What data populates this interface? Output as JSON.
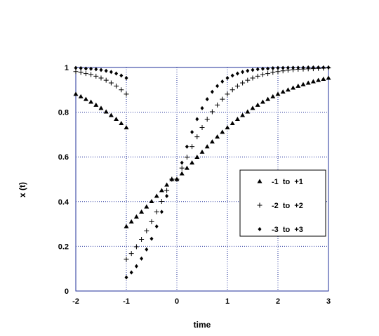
{
  "chart_data": {
    "type": "scatter",
    "title": "",
    "xlabel": "time",
    "ylabel": "x (t)",
    "xlim": [
      -2,
      3
    ],
    "ylim": [
      0,
      1
    ],
    "x_ticks": [
      "-2",
      "-1",
      "0",
      "1",
      "2",
      "3"
    ],
    "y_ticks": [
      "0",
      "0.2",
      "0.4",
      "0.6",
      "0.8",
      "1"
    ],
    "grid": true,
    "grid_color": "#1f2f9a",
    "frame_color": "#1f2f9a",
    "legend_position": "center-right",
    "series": [
      {
        "name": "-1  to  +1",
        "marker": "triangle",
        "points": [
          [
            -2.0,
            0.881
          ],
          [
            -1.9,
            0.87
          ],
          [
            -1.8,
            0.858
          ],
          [
            -1.7,
            0.846
          ],
          [
            -1.6,
            0.832
          ],
          [
            -1.5,
            0.818
          ],
          [
            -1.4,
            0.802
          ],
          [
            -1.3,
            0.786
          ],
          [
            -1.2,
            0.769
          ],
          [
            -1.1,
            0.75
          ],
          [
            -1.0,
            0.731
          ],
          [
            -1.0,
            0.289
          ],
          [
            -0.9,
            0.31
          ],
          [
            -0.8,
            0.332
          ],
          [
            -0.7,
            0.354
          ],
          [
            -0.6,
            0.377
          ],
          [
            -0.5,
            0.401
          ],
          [
            -0.4,
            0.425
          ],
          [
            -0.3,
            0.45
          ],
          [
            -0.2,
            0.475
          ],
          [
            -0.1,
            0.5
          ],
          [
            0.0,
            0.5
          ],
          [
            0.1,
            0.525
          ],
          [
            0.2,
            0.55
          ],
          [
            0.3,
            0.574
          ],
          [
            0.4,
            0.599
          ],
          [
            0.5,
            0.622
          ],
          [
            0.6,
            0.646
          ],
          [
            0.7,
            0.668
          ],
          [
            0.8,
            0.69
          ],
          [
            0.9,
            0.711
          ],
          [
            1.0,
            0.731
          ],
          [
            1.1,
            0.75
          ],
          [
            1.2,
            0.769
          ],
          [
            1.3,
            0.786
          ],
          [
            1.4,
            0.802
          ],
          [
            1.5,
            0.818
          ],
          [
            1.6,
            0.832
          ],
          [
            1.7,
            0.846
          ],
          [
            1.8,
            0.858
          ],
          [
            1.9,
            0.87
          ],
          [
            2.0,
            0.881
          ],
          [
            2.1,
            0.891
          ],
          [
            2.2,
            0.9
          ],
          [
            2.3,
            0.909
          ],
          [
            2.4,
            0.917
          ],
          [
            2.5,
            0.924
          ],
          [
            2.6,
            0.931
          ],
          [
            2.7,
            0.937
          ],
          [
            2.8,
            0.943
          ],
          [
            2.9,
            0.948
          ],
          [
            3.0,
            0.953
          ]
        ]
      },
      {
        "name": "-2  to  +2",
        "marker": "plus",
        "points": [
          [
            -2.0,
            0.982
          ],
          [
            -1.9,
            0.978
          ],
          [
            -1.8,
            0.973
          ],
          [
            -1.7,
            0.968
          ],
          [
            -1.6,
            0.961
          ],
          [
            -1.5,
            0.953
          ],
          [
            -1.4,
            0.943
          ],
          [
            -1.3,
            0.931
          ],
          [
            -1.2,
            0.917
          ],
          [
            -1.1,
            0.9
          ],
          [
            -1.0,
            0.881
          ],
          [
            -1.0,
            0.142
          ],
          [
            -0.9,
            0.168
          ],
          [
            -0.8,
            0.198
          ],
          [
            -0.7,
            0.231
          ],
          [
            -0.6,
            0.269
          ],
          [
            -0.5,
            0.31
          ],
          [
            -0.4,
            0.354
          ],
          [
            -0.3,
            0.401
          ],
          [
            -0.2,
            0.45
          ],
          [
            -0.1,
            0.5
          ],
          [
            0.0,
            0.5
          ],
          [
            0.1,
            0.55
          ],
          [
            0.2,
            0.599
          ],
          [
            0.3,
            0.646
          ],
          [
            0.4,
            0.69
          ],
          [
            0.5,
            0.731
          ],
          [
            0.6,
            0.769
          ],
          [
            0.7,
            0.802
          ],
          [
            0.8,
            0.832
          ],
          [
            0.9,
            0.858
          ],
          [
            1.0,
            0.881
          ],
          [
            1.1,
            0.9
          ],
          [
            1.2,
            0.917
          ],
          [
            1.3,
            0.931
          ],
          [
            1.4,
            0.943
          ],
          [
            1.5,
            0.953
          ],
          [
            1.6,
            0.961
          ],
          [
            1.7,
            0.968
          ],
          [
            1.8,
            0.973
          ],
          [
            1.9,
            0.978
          ],
          [
            2.0,
            0.982
          ],
          [
            2.1,
            0.985
          ],
          [
            2.2,
            0.988
          ],
          [
            2.3,
            0.99
          ],
          [
            2.4,
            0.992
          ],
          [
            2.5,
            0.993
          ],
          [
            2.6,
            0.994
          ],
          [
            2.7,
            0.995
          ],
          [
            2.8,
            0.996
          ],
          [
            2.9,
            0.997
          ],
          [
            3.0,
            0.998
          ]
        ]
      },
      {
        "name": "-3  to  +3",
        "marker": "diamond",
        "points": [
          [
            -2.0,
            0.998
          ],
          [
            -1.9,
            0.997
          ],
          [
            -1.8,
            0.995
          ],
          [
            -1.7,
            0.994
          ],
          [
            -1.6,
            0.992
          ],
          [
            -1.5,
            0.989
          ],
          [
            -1.4,
            0.985
          ],
          [
            -1.3,
            0.98
          ],
          [
            -1.2,
            0.973
          ],
          [
            -1.1,
            0.964
          ],
          [
            -1.0,
            0.953
          ],
          [
            -1.0,
            0.061
          ],
          [
            -0.9,
            0.083
          ],
          [
            -0.8,
            0.111
          ],
          [
            -0.7,
            0.145
          ],
          [
            -0.6,
            0.186
          ],
          [
            -0.5,
            0.234
          ],
          [
            -0.4,
            0.289
          ],
          [
            -0.3,
            0.354
          ],
          [
            -0.2,
            0.425
          ],
          [
            -0.1,
            0.5
          ],
          [
            0.0,
            0.5
          ],
          [
            0.1,
            0.574
          ],
          [
            0.2,
            0.646
          ],
          [
            0.3,
            0.711
          ],
          [
            0.4,
            0.769
          ],
          [
            0.5,
            0.818
          ],
          [
            0.6,
            0.858
          ],
          [
            0.7,
            0.891
          ],
          [
            0.8,
            0.917
          ],
          [
            0.9,
            0.937
          ],
          [
            1.0,
            0.953
          ],
          [
            1.1,
            0.964
          ],
          [
            1.2,
            0.973
          ],
          [
            1.3,
            0.98
          ],
          [
            1.4,
            0.985
          ],
          [
            1.5,
            0.989
          ],
          [
            1.6,
            0.992
          ],
          [
            1.7,
            0.994
          ],
          [
            1.8,
            0.995
          ],
          [
            1.9,
            0.997
          ],
          [
            2.0,
            0.998
          ],
          [
            2.1,
            0.998
          ],
          [
            2.2,
            0.999
          ],
          [
            2.3,
            0.999
          ],
          [
            2.4,
            0.999
          ],
          [
            2.5,
            0.999
          ],
          [
            2.6,
            1.0
          ],
          [
            2.7,
            1.0
          ],
          [
            2.8,
            1.0
          ],
          [
            2.9,
            1.0
          ],
          [
            3.0,
            1.0
          ]
        ]
      }
    ]
  }
}
